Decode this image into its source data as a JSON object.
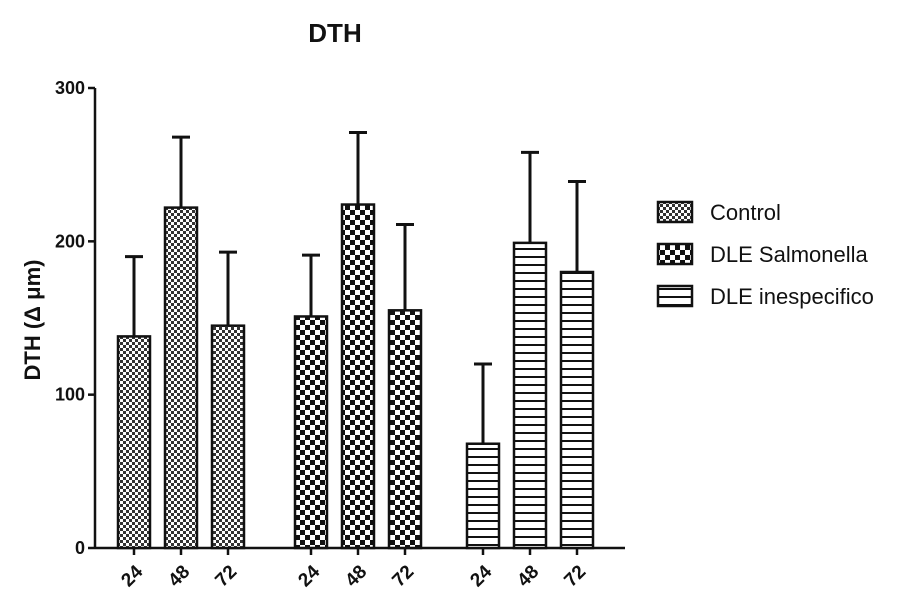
{
  "chart_data": {
    "type": "bar",
    "title": "DTH",
    "xlabel": "",
    "ylabel": "DTH (Δ μm)",
    "ylim": [
      0,
      300
    ],
    "yticks": [
      0,
      100,
      200,
      300
    ],
    "grid": false,
    "legend_position": "right",
    "groups": [
      {
        "name": "Control",
        "pattern": "dense-checker",
        "categories": [
          "24",
          "48",
          "72"
        ],
        "values": [
          138,
          222,
          145
        ],
        "errors": [
          52,
          46,
          48
        ]
      },
      {
        "name": "DLE Salmonella",
        "pattern": "checker",
        "categories": [
          "24",
          "48",
          "72"
        ],
        "values": [
          151,
          224,
          155
        ],
        "errors": [
          40,
          47,
          56
        ]
      },
      {
        "name": "DLE inespecifico",
        "pattern": "horizontal-lines",
        "categories": [
          "24",
          "48",
          "72"
        ],
        "values": [
          68,
          199,
          180
        ],
        "errors": [
          52,
          59,
          59
        ]
      }
    ]
  }
}
